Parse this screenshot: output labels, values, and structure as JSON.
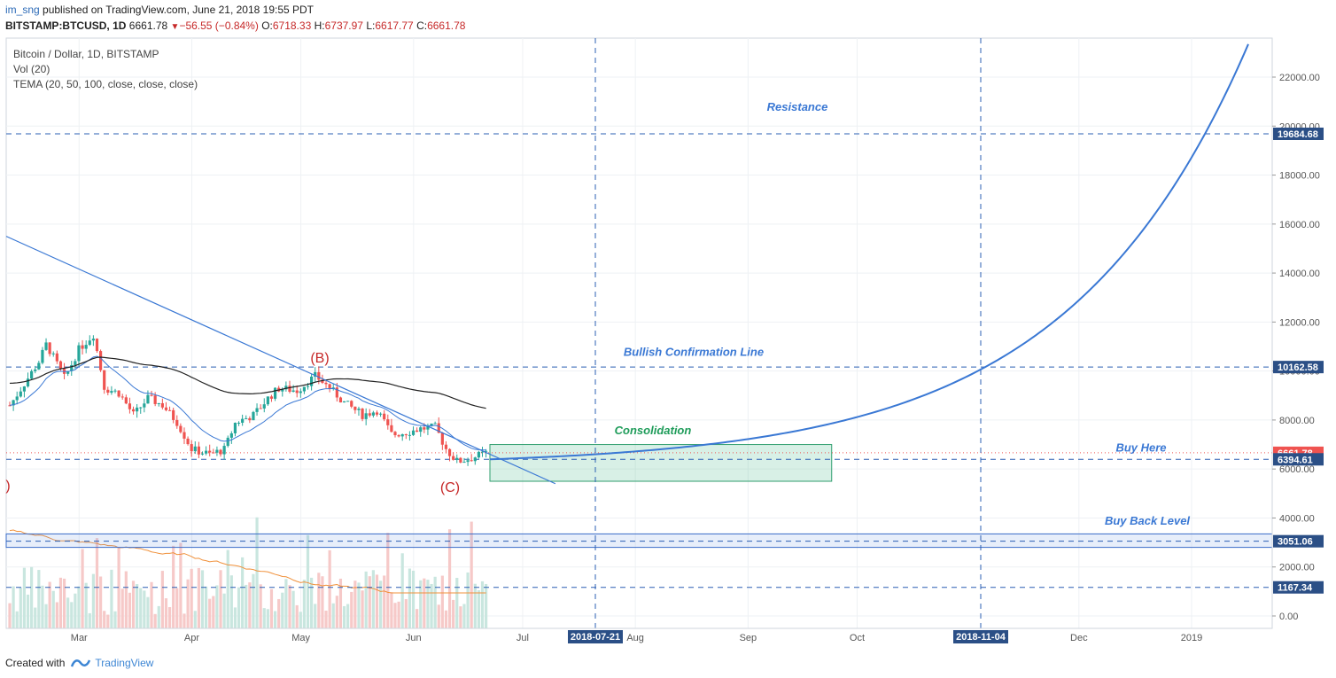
{
  "header": {
    "user": "im_sng",
    "published": "published on TradingView.com, June 21, 2018 19:55 PDT",
    "symbol": "BITSTAMP:BTCUSD, 1D",
    "last": "6661.78",
    "change": "−56.55 (−0.84%)",
    "o_label": "O:",
    "o_value": "6718.33",
    "h_label": "H:",
    "h_value": "6737.97",
    "l_label": "L:",
    "l_value": "6617.77",
    "c_label": "C:",
    "c_value": "6661.78"
  },
  "legend": {
    "title": "Bitcoin / Dollar, 1D, BITSTAMP",
    "vol": "Vol (20)",
    "tema": "TEMA (20, 50, 100, close, close, close)"
  },
  "footer": {
    "created_with": "Created with",
    "brand": "TradingView"
  },
  "colors": {
    "up": "#26a69a",
    "down": "#ef5350",
    "blue": "#3a78d4",
    "black": "#222222",
    "orange": "#f0903a",
    "dashed": "#2b5fb3",
    "resistance_text": "#3a78d4",
    "consolidation_text": "#1f9c5a",
    "wave_label": "#c62828"
  },
  "chart_data": {
    "type": "candlestick",
    "symbol": "BITSTAMP:BTCUSD",
    "timeframe": "1D",
    "x_tick_labels": [
      "Mar",
      "Apr",
      "May",
      "Jun",
      "Jul",
      "2018-07-21",
      "Aug",
      "Sep",
      "Oct",
      "2018-11-04",
      "Dec",
      "2019"
    ],
    "y_tick_labels": [
      "22000.00",
      "20000.00",
      "18000.00",
      "16000.00",
      "14000.00",
      "12000.00",
      "10000.00",
      "8000.00",
      "6000.00",
      "4000.00",
      "2000.00",
      "0.00"
    ],
    "ylim": [
      -400,
      23000
    ],
    "price_labels": [
      {
        "text": "19684.68",
        "value": 19684.68
      },
      {
        "text": "10162.58",
        "value": 10162.58
      },
      {
        "text": "6661.78",
        "value": 6661.78,
        "color": "#ef5350"
      },
      {
        "text": "6394.61",
        "value": 6394.61
      },
      {
        "text": "3051.06",
        "value": 3051.06
      },
      {
        "text": "1167.34",
        "value": 1167.34
      }
    ],
    "horizontal_levels": [
      19684.68,
      10162.58,
      6394.61,
      3051.06,
      1167.34
    ],
    "vertical_markers": [
      "2018-07-21",
      "2018-11-04"
    ],
    "annotations": [
      {
        "text": "Resistance",
        "value": 20800
      },
      {
        "text": "Bullish Confirmation Line",
        "value": 10800
      },
      {
        "text": "Consolidation",
        "value": 7600
      },
      {
        "text": "Buy Here",
        "value": 6900
      },
      {
        "text": "Buy Back Level",
        "value": 3900
      }
    ],
    "wave_labels": [
      "(B)",
      "(C)",
      ")"
    ],
    "zones": [
      {
        "name": "consolidation",
        "from": "2018-06-22",
        "to": "2018-09-24",
        "low": 5500,
        "high": 7000
      },
      {
        "name": "buy-back",
        "low": 2800,
        "high": 3350
      }
    ],
    "close_series_approx": [
      {
        "date": "2018-02-10",
        "close": 8600
      },
      {
        "date": "2018-02-14",
        "close": 9500
      },
      {
        "date": "2018-02-18",
        "close": 10400
      },
      {
        "date": "2018-02-20",
        "close": 11100
      },
      {
        "date": "2018-02-25",
        "close": 9700
      },
      {
        "date": "2018-03-01",
        "close": 10900
      },
      {
        "date": "2018-03-05",
        "close": 11500
      },
      {
        "date": "2018-03-08",
        "close": 9300
      },
      {
        "date": "2018-03-12",
        "close": 9100
      },
      {
        "date": "2018-03-16",
        "close": 8200
      },
      {
        "date": "2018-03-20",
        "close": 8900
      },
      {
        "date": "2018-03-24",
        "close": 8600
      },
      {
        "date": "2018-03-28",
        "close": 7900
      },
      {
        "date": "2018-04-01",
        "close": 6800
      },
      {
        "date": "2018-04-06",
        "close": 6600
      },
      {
        "date": "2018-04-10",
        "close": 6800
      },
      {
        "date": "2018-04-13",
        "close": 7900
      },
      {
        "date": "2018-04-18",
        "close": 8200
      },
      {
        "date": "2018-04-22",
        "close": 8900
      },
      {
        "date": "2018-04-25",
        "close": 9300
      },
      {
        "date": "2018-04-30",
        "close": 9200
      },
      {
        "date": "2018-05-05",
        "close": 9800
      },
      {
        "date": "2018-05-09",
        "close": 9300
      },
      {
        "date": "2018-05-13",
        "close": 8700
      },
      {
        "date": "2018-05-18",
        "close": 8200
      },
      {
        "date": "2018-05-22",
        "close": 8400
      },
      {
        "date": "2018-05-26",
        "close": 7400
      },
      {
        "date": "2018-05-30",
        "close": 7500
      },
      {
        "date": "2018-06-03",
        "close": 7650
      },
      {
        "date": "2018-06-07",
        "close": 7700
      },
      {
        "date": "2018-06-10",
        "close": 6800
      },
      {
        "date": "2018-06-13",
        "close": 6300
      },
      {
        "date": "2018-06-17",
        "close": 6450
      },
      {
        "date": "2018-06-21",
        "close": 6661.78
      }
    ]
  }
}
